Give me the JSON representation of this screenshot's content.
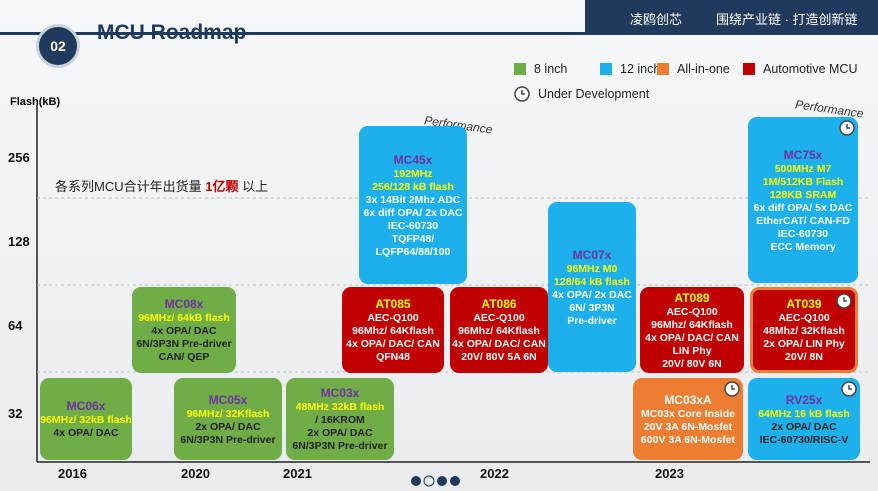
{
  "header": {
    "badge": "02",
    "title": "MCU Roadmap",
    "brand": "凌鸥创芯",
    "slogan": "围绕产业链 · 打造创新链"
  },
  "legend": [
    {
      "label": "8 inch",
      "color": "#70ad47"
    },
    {
      "label": "12 inch",
      "color": "#1cb0ec"
    },
    {
      "label": "All-in-one",
      "color": "#ed7d31"
    },
    {
      "label": "Automotive MCU",
      "color": "#c00000"
    }
  ],
  "legend_clock": "Under Development",
  "y_axis": {
    "label": "Flash(kB)",
    "ticks": [
      "256",
      "128",
      "64",
      "32"
    ]
  },
  "x_axis": {
    "ticks": [
      "2016",
      "2020",
      "2021",
      "2022",
      "2023"
    ]
  },
  "annotation": {
    "before": "各系列MCU合计年出货量 ",
    "highlight": "1亿颗",
    "after": " 以上"
  },
  "performance": [
    "Performance",
    "Performance"
  ],
  "boxes": [
    {
      "lines": [
        "MC06x",
        "96MHz/ 32kB flash",
        "4x OPA/ DAC"
      ],
      "color": "#70ad47"
    },
    {
      "lines": [
        "MC08x",
        "96MHz/ 64kB flash",
        "4x OPA/ DAC",
        "6N/3P3N Pre-driver",
        "CAN/ QEP"
      ],
      "color": "#70ad47"
    },
    {
      "lines": [
        "MC05x",
        "96MHz/ 32Kflash",
        "2x OPA/ DAC",
        "6N/3P3N Pre-driver"
      ],
      "color": "#70ad47"
    },
    {
      "lines": [
        "MC03x",
        "48MHz 32kB flash",
        "/ 16KROM",
        "2x OPA/ DAC",
        "6N/3P3N Pre-driver"
      ],
      "color": "#70ad47"
    },
    {
      "lines": [
        "MC45x",
        "192MHz",
        "256/128 kB flash",
        "3x 14Bit 2Mhz ADC",
        "6x diff OPA/ 2x DAC",
        "IEC-60730",
        "TQFP48/",
        "LQFP64/88/100"
      ],
      "color": "#1cb0ec"
    },
    {
      "lines": [
        "AT085",
        "AEC-Q100",
        "96Mhz/ 64Kflash",
        "4x OPA/ DAC/ CAN",
        "QFN48"
      ],
      "color": "#c00000"
    },
    {
      "lines": [
        "AT086",
        "AEC-Q100",
        "96Mhz/ 64Kflash",
        "4x OPA/ DAC/ CAN",
        "20V/ 80V 5A 6N"
      ],
      "color": "#c00000"
    },
    {
      "lines": [
        "MC07x",
        "96MHz M0",
        "128/64 kB flash",
        "4x OPA/ 2x DAC",
        "6N/ 3P3N",
        "Pre-driver"
      ],
      "color": "#1cb0ec"
    },
    {
      "lines": [
        "AT089",
        "AEC-Q100",
        "96Mhz/ 64Kflash",
        "4x OPA/ DAC/ CAN",
        "LIN Phy",
        "20V/ 80V 6N"
      ],
      "color": "#c00000"
    },
    {
      "lines": [
        "MC03xA",
        "MC03x Core Inside",
        "20V 3A 6N-Mosfet",
        "600V 3A 6N-Mosfet"
      ],
      "color": "#ed7d31",
      "under_development": true
    },
    {
      "lines": [
        "MC75x",
        "500MHz M7",
        "1M/512KB Flash",
        "128KB SRAM",
        "6x diff OPA/ 5x DAC",
        "EtherCAT/ CAN-FD",
        "IEC-60730",
        "ECC Memory"
      ],
      "color": "#1cb0ec",
      "under_development": true
    },
    {
      "lines": [
        "AT039",
        "AEC-Q100",
        "48Mhz/ 32Kflash",
        "2x OPA/ LIN Phy",
        "20V/ 8N"
      ],
      "color": "#c00000",
      "under_development": true
    },
    {
      "lines": [
        "RV25x",
        "64MHz 16 kB flash",
        "2x OPA/ DAC",
        "IEC-60730/RISC-V"
      ],
      "color": "#1cb0ec",
      "under_development": true
    }
  ]
}
